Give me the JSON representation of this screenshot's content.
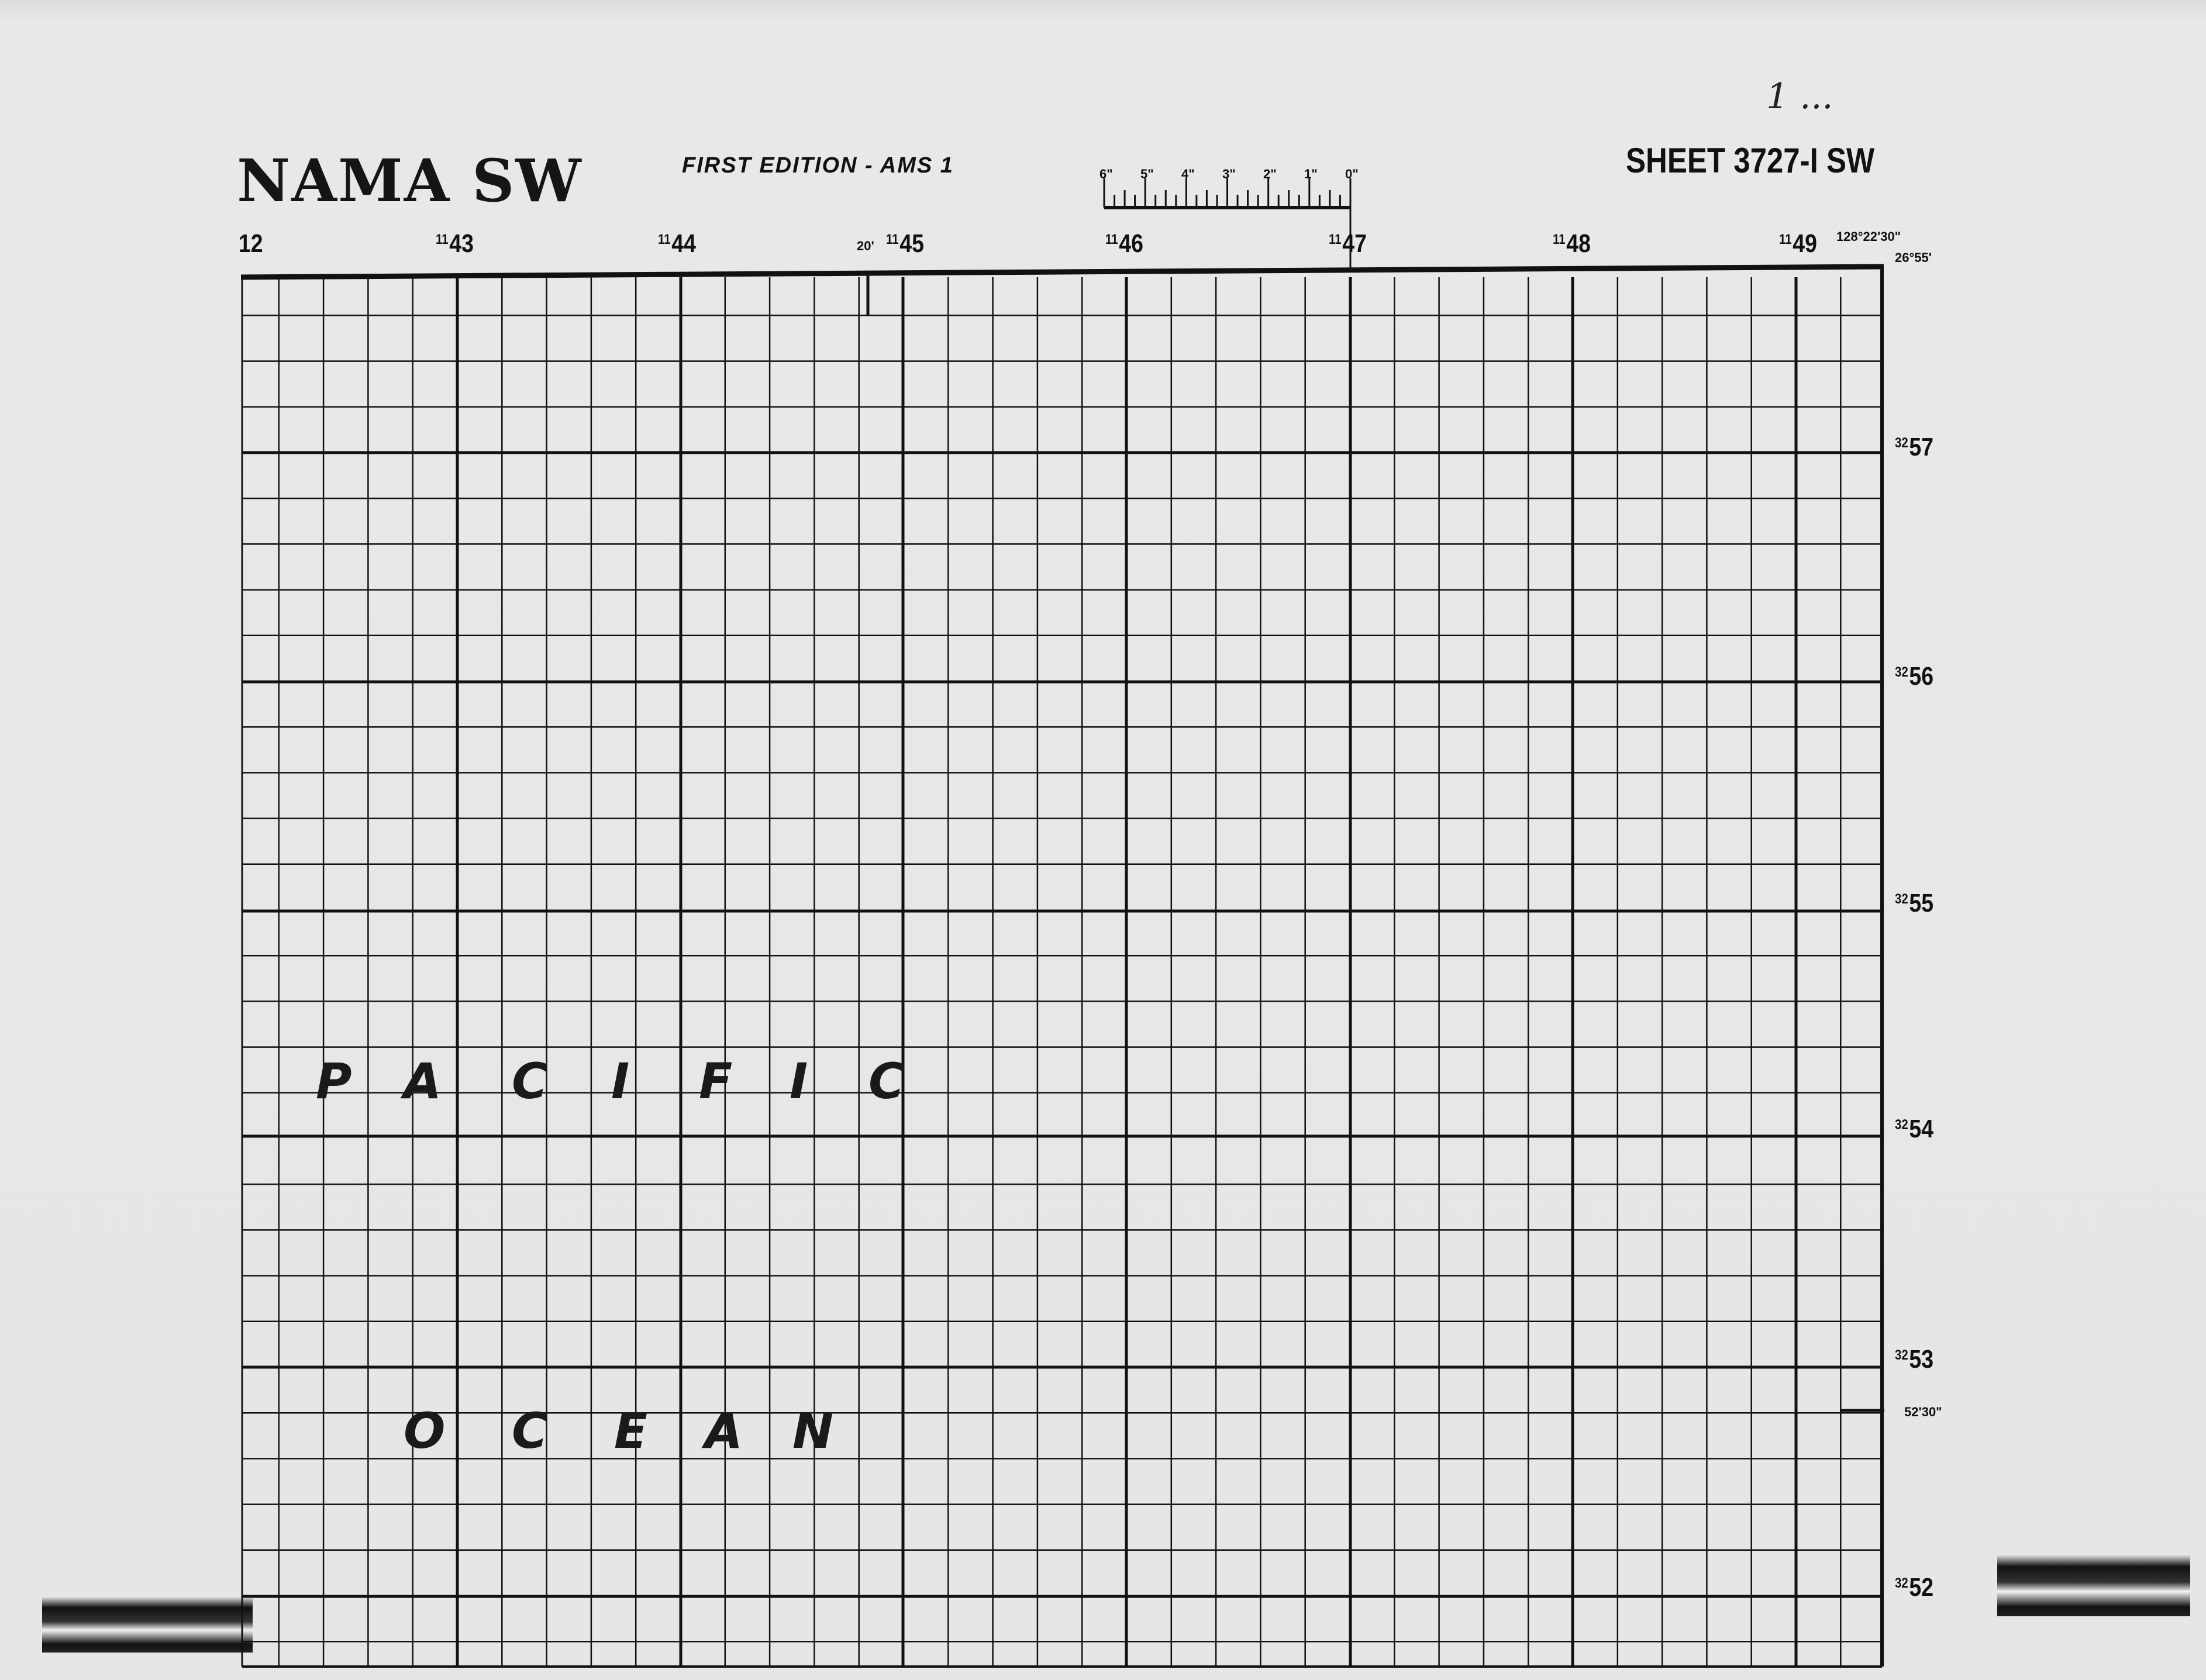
{
  "header": {
    "title": "NAMA SW",
    "edition": "FIRST EDITION - AMS 1",
    "sheet": "SHEET 3727-I SW",
    "handwritten_note": "1 ..."
  },
  "scale_bar": {
    "labels": [
      "6\"",
      "5\"",
      "4\"",
      "3\"",
      "2\"",
      "1\"",
      "0\""
    ]
  },
  "grid_labels": {
    "top": [
      {
        "prefix": "",
        "value": "12"
      },
      {
        "prefix": "11",
        "value": "43"
      },
      {
        "prefix": "11",
        "value": "44"
      },
      {
        "prefix": "11",
        "value": "45"
      },
      {
        "prefix": "11",
        "value": "46"
      },
      {
        "prefix": "11",
        "value": "47"
      },
      {
        "prefix": "11",
        "value": "48"
      },
      {
        "prefix": "11",
        "value": "49"
      }
    ],
    "right": [
      {
        "prefix": "32",
        "value": "57"
      },
      {
        "prefix": "32",
        "value": "56"
      },
      {
        "prefix": "32",
        "value": "55"
      },
      {
        "prefix": "32",
        "value": "54"
      },
      {
        "prefix": "32",
        "value": "53"
      },
      {
        "prefix": "32",
        "value": "52"
      }
    ],
    "corner_longitude": "128°22'30\"",
    "corner_latitude": "26°55'",
    "minute_tick_top": "20'",
    "minute_tick_right": "52'30\""
  },
  "map_labels": {
    "word1": [
      "P",
      "A",
      "C",
      "I",
      "F",
      "I",
      "C"
    ],
    "word2": [
      "O",
      "C",
      "E",
      "A",
      "N"
    ]
  },
  "colors": {
    "paper": "#e6e6e6",
    "ink": "#111111"
  }
}
